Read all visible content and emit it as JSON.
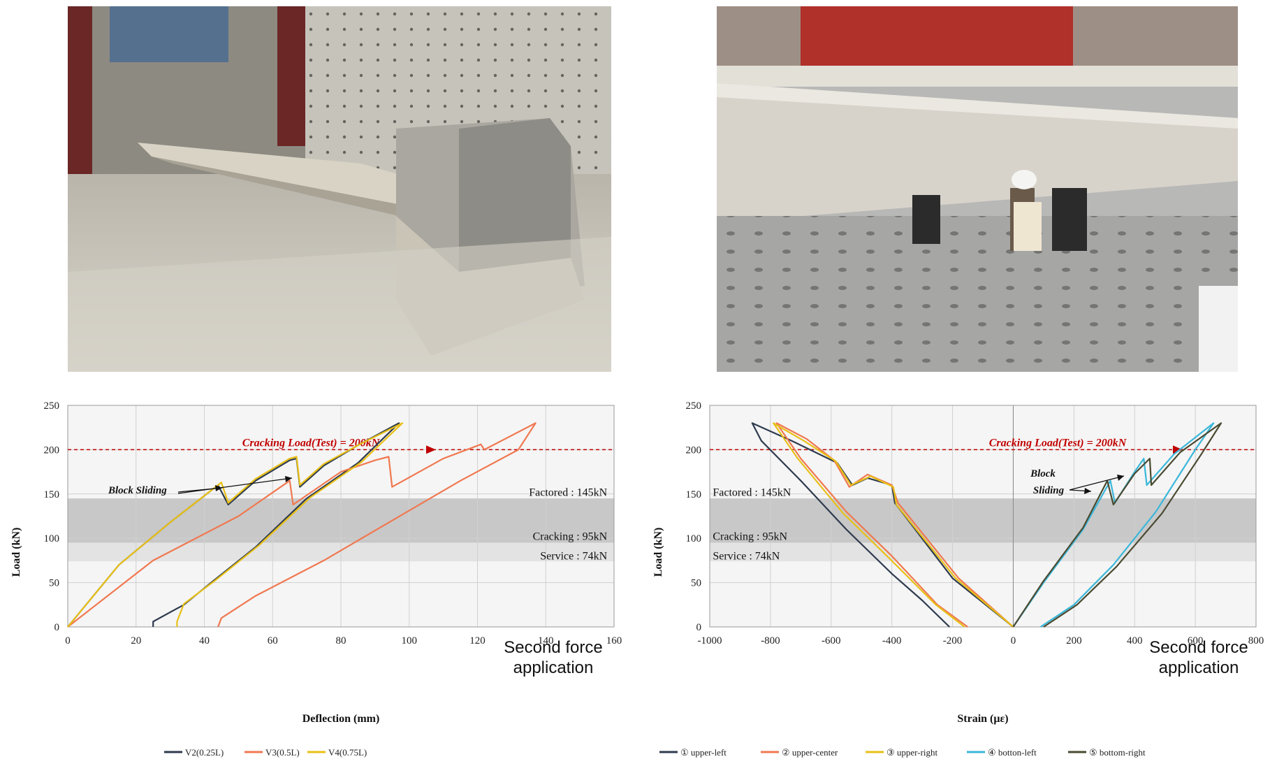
{
  "photos": [
    {
      "icon": "photo-beam-test-end-block"
    },
    {
      "icon": "photo-beam-test-side-view"
    }
  ],
  "colors": {
    "V2": "#2e3b4e",
    "V3": "#f07850",
    "V4": "#e8c017",
    "upper_left": "#2e3b4e",
    "upper_center": "#f07850",
    "upper_right": "#e8c017",
    "bottom_left": "#3bb7d9",
    "bottom_right": "#4a4a32",
    "cracking_line": "#c00000",
    "band_dark": "#c8c8c8",
    "band_light": "#e3e3e3"
  },
  "chart_data": [
    {
      "type": "line",
      "xlabel": "Deflection (mm)",
      "ylabel": "Load (kN)",
      "xlim": [
        0,
        160
      ],
      "ylim": [
        0,
        250
      ],
      "xticks": [
        "0",
        "20",
        "40",
        "60",
        "80",
        "100",
        "120",
        "140",
        "160"
      ],
      "yticks": [
        "0",
        "50",
        "100",
        "150",
        "200",
        "250"
      ],
      "grid": true,
      "bands": [
        {
          "from": 74,
          "to": 95,
          "shade": "light"
        },
        {
          "from": 95,
          "to": 145,
          "shade": "dark"
        }
      ],
      "cracking_line": {
        "y": 200,
        "label": "Cracking Load(Test) = 200kN"
      },
      "band_labels": [
        {
          "label": "Factored : 145kN",
          "x": 158,
          "y": 152
        },
        {
          "label": "Cracking : 95kN",
          "x": 158,
          "y": 102
        },
        {
          "label": "Service : 74kN",
          "x": 158,
          "y": 80
        }
      ],
      "annotation": {
        "label": "Block Sliding"
      },
      "note_lines": [
        "Second force",
        "application"
      ],
      "legend_position": "bottom",
      "series": [
        {
          "name": "V2(0.25L)",
          "points": [
            [
              0,
              0
            ],
            [
              15,
              70
            ],
            [
              30,
              118
            ],
            [
              44,
              160
            ],
            [
              47,
              138
            ],
            [
              55,
              165
            ],
            [
              65,
              188
            ],
            [
              67,
              190
            ],
            [
              68,
              158
            ],
            [
              75,
              182
            ],
            [
              85,
              205
            ],
            [
              97,
              230
            ],
            [
              85,
              185
            ],
            [
              70,
              145
            ],
            [
              55,
              90
            ],
            [
              42,
              50
            ],
            [
              34,
              25
            ],
            [
              25,
              6
            ],
            [
              25,
              0
            ]
          ]
        },
        {
          "name": "V3(0.5L)",
          "points": [
            [
              0,
              0
            ],
            [
              25,
              75
            ],
            [
              50,
              125
            ],
            [
              65,
              165
            ],
            [
              66,
              138
            ],
            [
              80,
              175
            ],
            [
              90,
              188
            ],
            [
              94,
              192
            ],
            [
              95,
              158
            ],
            [
              110,
              190
            ],
            [
              121,
              206
            ],
            [
              122,
              200
            ],
            [
              137,
              230
            ],
            [
              132,
              200
            ],
            [
              115,
              165
            ],
            [
              95,
              120
            ],
            [
              75,
              75
            ],
            [
              55,
              35
            ],
            [
              45,
              10
            ],
            [
              44,
              0
            ]
          ]
        },
        {
          "name": "V4(0.75L)",
          "points": [
            [
              0,
              0
            ],
            [
              15,
              70
            ],
            [
              30,
              118
            ],
            [
              45,
              163
            ],
            [
              47,
              140
            ],
            [
              55,
              167
            ],
            [
              65,
              190
            ],
            [
              67,
              192
            ],
            [
              68,
              160
            ],
            [
              75,
              184
            ],
            [
              86,
              207
            ],
            [
              98,
              230
            ],
            [
              86,
              186
            ],
            [
              71,
              146
            ],
            [
              56,
              92
            ],
            [
              43,
              52
            ],
            [
              34,
              26
            ],
            [
              32,
              6
            ],
            [
              32,
              0
            ]
          ]
        }
      ]
    },
    {
      "type": "line",
      "xlabel": "Strain (με)",
      "ylabel": "Load (kN)",
      "xlim": [
        -1000,
        800
      ],
      "ylim": [
        0,
        250
      ],
      "xticks": [
        "-1000",
        "-800",
        "-600",
        "-400",
        "-200",
        "0",
        "200",
        "400",
        "600",
        "800"
      ],
      "yticks": [
        "0",
        "50",
        "100",
        "150",
        "200",
        "250"
      ],
      "grid": true,
      "bands": [
        {
          "from": 74,
          "to": 95,
          "shade": "light"
        },
        {
          "from": 95,
          "to": 145,
          "shade": "dark"
        }
      ],
      "cracking_line": {
        "y": 200,
        "label": "Cracking Load(Test) = 200kN"
      },
      "band_labels": [
        {
          "label": "Factored : 145kN",
          "x": -990,
          "y": 152
        },
        {
          "label": "Cracking : 95kN",
          "x": -990,
          "y": 102
        },
        {
          "label": "Service : 74kN",
          "x": -990,
          "y": 80
        }
      ],
      "annotation": {
        "label_lines": [
          "Block",
          "Sliding"
        ]
      },
      "note_lines": [
        "Second force",
        "application"
      ],
      "legend_position": "bottom",
      "series": [
        {
          "name": "① upper-left",
          "points": [
            [
              0,
              0
            ],
            [
              -200,
              55
            ],
            [
              -390,
              140
            ],
            [
              -400,
              160
            ],
            [
              -480,
              168
            ],
            [
              -530,
              160
            ],
            [
              -580,
              185
            ],
            [
              -730,
              210
            ],
            [
              -860,
              230
            ],
            [
              -830,
              210
            ],
            [
              -700,
              165
            ],
            [
              -550,
              110
            ],
            [
              -400,
              60
            ],
            [
              -300,
              30
            ],
            [
              -210,
              0
            ]
          ]
        },
        {
          "name": "② upper-center",
          "points": [
            [
              0,
              0
            ],
            [
              -180,
              55
            ],
            [
              -380,
              140
            ],
            [
              -400,
              160
            ],
            [
              -480,
              172
            ],
            [
              -540,
              158
            ],
            [
              -590,
              188
            ],
            [
              -680,
              212
            ],
            [
              -780,
              230
            ],
            [
              -700,
              190
            ],
            [
              -550,
              130
            ],
            [
              -400,
              80
            ],
            [
              -250,
              25
            ],
            [
              -150,
              0
            ]
          ]
        },
        {
          "name": "③ upper-right",
          "points": [
            [
              0,
              0
            ],
            [
              -190,
              55
            ],
            [
              -385,
              138
            ],
            [
              -395,
              158
            ],
            [
              -470,
              170
            ],
            [
              -535,
              160
            ],
            [
              -585,
              187
            ],
            [
              -690,
              210
            ],
            [
              -790,
              230
            ],
            [
              -710,
              190
            ],
            [
              -560,
              128
            ],
            [
              -410,
              78
            ],
            [
              -255,
              25
            ],
            [
              -160,
              0
            ]
          ]
        },
        {
          "name": "④ botton-left",
          "points": [
            [
              0,
              0
            ],
            [
              100,
              50
            ],
            [
              230,
              110
            ],
            [
              320,
              165
            ],
            [
              335,
              140
            ],
            [
              400,
              175
            ],
            [
              430,
              190
            ],
            [
              440,
              160
            ],
            [
              530,
              195
            ],
            [
              660,
              230
            ],
            [
              600,
              200
            ],
            [
              470,
              130
            ],
            [
              330,
              70
            ],
            [
              200,
              25
            ],
            [
              90,
              0
            ]
          ]
        },
        {
          "name": "⑤ bottom-right",
          "points": [
            [
              0,
              0
            ],
            [
              100,
              52
            ],
            [
              230,
              112
            ],
            [
              310,
              165
            ],
            [
              330,
              138
            ],
            [
              400,
              173
            ],
            [
              450,
              190
            ],
            [
              455,
              160
            ],
            [
              550,
              197
            ],
            [
              685,
              230
            ],
            [
              620,
              195
            ],
            [
              490,
              128
            ],
            [
              340,
              68
            ],
            [
              210,
              25
            ],
            [
              100,
              0
            ]
          ]
        }
      ]
    }
  ]
}
